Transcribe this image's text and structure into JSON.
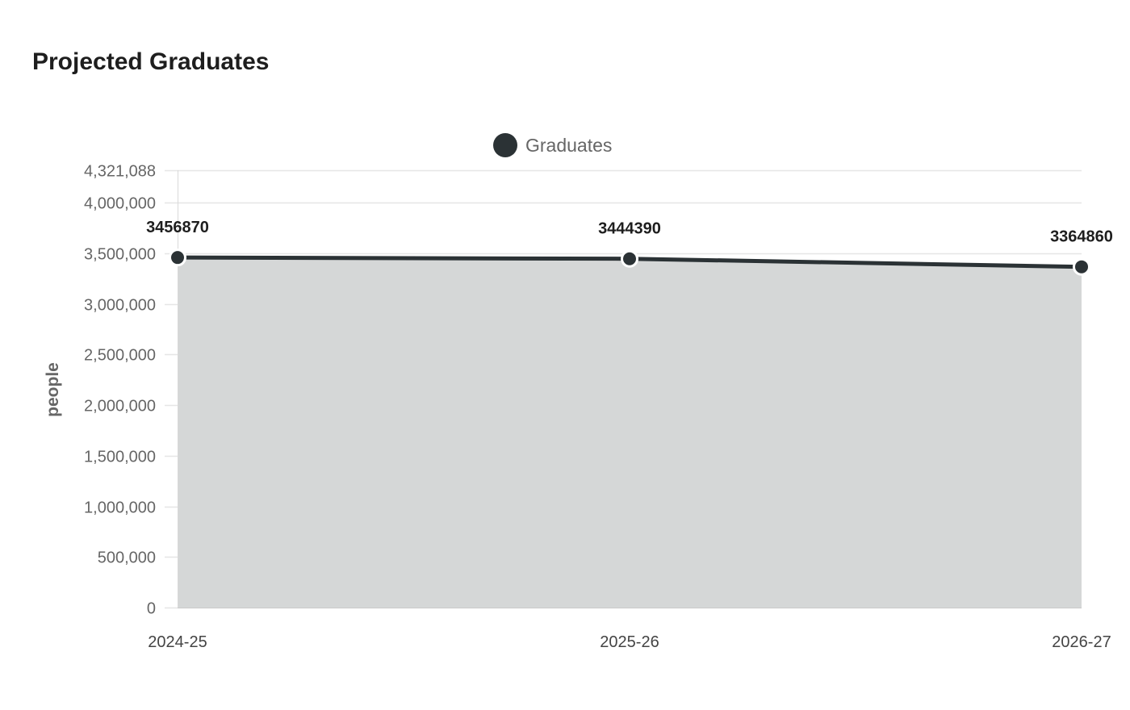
{
  "page": {
    "title": "Projected Graduates"
  },
  "legend": {
    "label": "Graduates",
    "color": "#2b3235"
  },
  "colors": {
    "line": "#2b3235",
    "area": "#d5d7d7",
    "grid": "#e6e6e6"
  },
  "chart_data": {
    "type": "area",
    "title": "Projected Graduates",
    "xlabel": "",
    "ylabel": "people",
    "categories": [
      "2024-25",
      "2025-26",
      "2026-27"
    ],
    "series": [
      {
        "name": "Graduates",
        "values": [
          3456870,
          3444390,
          3364860
        ]
      }
    ],
    "data_labels": [
      "3456870",
      "3444390",
      "3364860"
    ],
    "y_ticks": [
      "0",
      "500,000",
      "1,000,000",
      "1,500,000",
      "2,000,000",
      "2,500,000",
      "3,000,000",
      "3,500,000",
      "4,000,000",
      "4,321,088"
    ],
    "ylim": [
      0,
      4321088
    ],
    "grid": true,
    "legend_position": "top"
  }
}
